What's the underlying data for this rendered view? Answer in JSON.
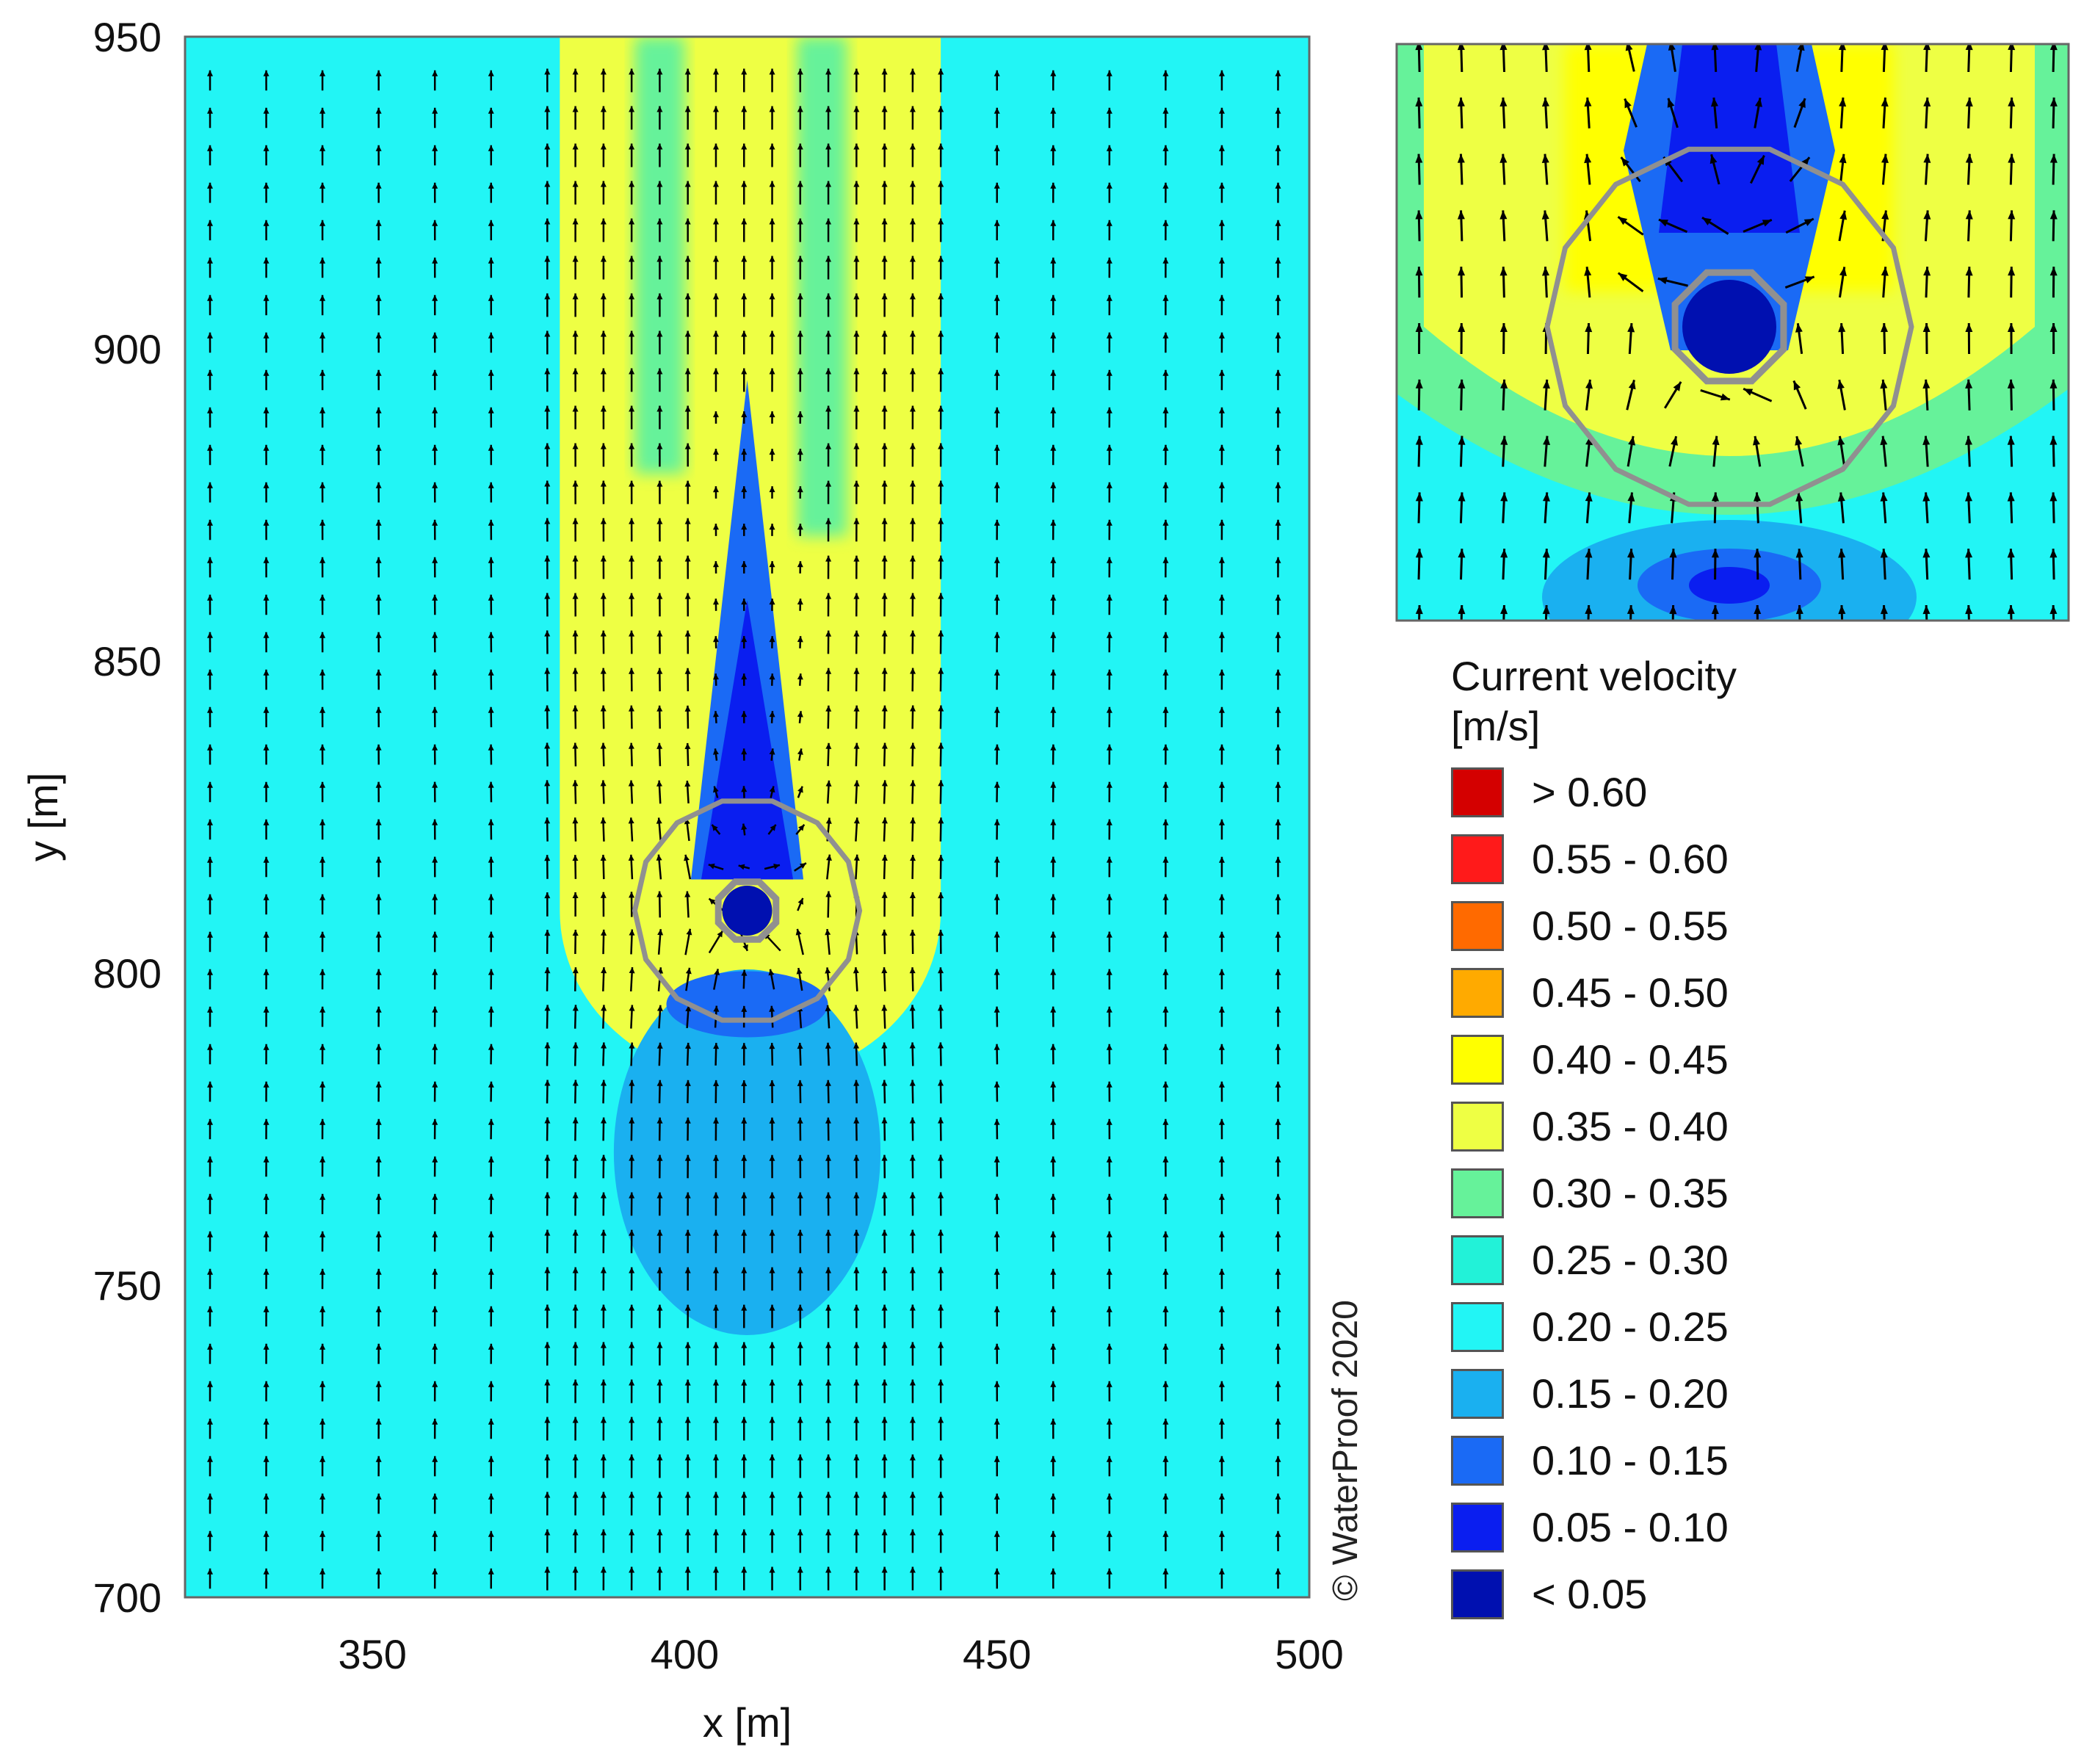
{
  "chart_data": [
    {
      "type": "heatmap",
      "subtype": "vector-field-contour",
      "title": "",
      "xlabel": "x [m]",
      "ylabel": "y [m]",
      "xlim": [
        320,
        500
      ],
      "ylim": [
        700,
        950
      ],
      "xticks": [
        "350",
        "400",
        "450",
        "500"
      ],
      "yticks": [
        "700",
        "750",
        "800",
        "850",
        "900",
        "950"
      ],
      "grid": false,
      "legend_position": "right",
      "structure": {
        "center_x": 410,
        "center_y": 810,
        "pile_radius_m": 5,
        "scour_ring_radius_m": 18
      },
      "contour_regions": [
        {
          "class": "0.20 - 0.25",
          "description": "background"
        },
        {
          "class": "0.35 - 0.40",
          "x": [
            380,
            441
          ],
          "y": [
            810,
            950
          ]
        },
        {
          "class": "0.30 - 0.35",
          "x": [
            392,
            400
          ],
          "y": [
            880,
            950
          ]
        },
        {
          "class": "0.30 - 0.35",
          "x": [
            418,
            426
          ],
          "y": [
            870,
            950
          ]
        },
        {
          "class": "0.05 - 0.10",
          "x": [
            401,
            419
          ],
          "y": [
            815,
            895
          ]
        },
        {
          "class": "0.15 - 0.20",
          "x": [
            391,
            429
          ],
          "y": [
            762,
            790
          ]
        }
      ]
    },
    {
      "type": "heatmap",
      "subtype": "vector-field-contour-inset",
      "title": "",
      "description_of_view": "zoom around structure"
    }
  ],
  "legend": {
    "title_line1": "Current velocity",
    "title_line2": "[m/s]",
    "items": [
      {
        "label": "> 0.60",
        "color": "#d40000"
      },
      {
        "label": "0.55 - 0.60",
        "color": "#ff1a1a"
      },
      {
        "label": "0.50 - 0.55",
        "color": "#ff6a00"
      },
      {
        "label": "0.45 - 0.50",
        "color": "#ffaa00"
      },
      {
        "label": "0.40 - 0.45",
        "color": "#ffff00"
      },
      {
        "label": "0.35 - 0.40",
        "color": "#eeff44"
      },
      {
        "label": "0.30 - 0.35",
        "color": "#66f29a"
      },
      {
        "label": "0.25 - 0.30",
        "color": "#22f2d8"
      },
      {
        "label": "0.20 - 0.25",
        "color": "#22f5f5"
      },
      {
        "label": "0.15 - 0.20",
        "color": "#1ab0f0"
      },
      {
        "label": "0.10 - 0.15",
        "color": "#1a6af5"
      },
      {
        "label": "0.05 - 0.10",
        "color": "#0a1ef0"
      },
      {
        "label": "< 0.05",
        "color": "#0010b0"
      }
    ]
  },
  "watermark": "© WaterProof 2020",
  "colors": {
    "structure_outline": "#909090",
    "arrow": "#000000",
    "frame": "#666666"
  }
}
